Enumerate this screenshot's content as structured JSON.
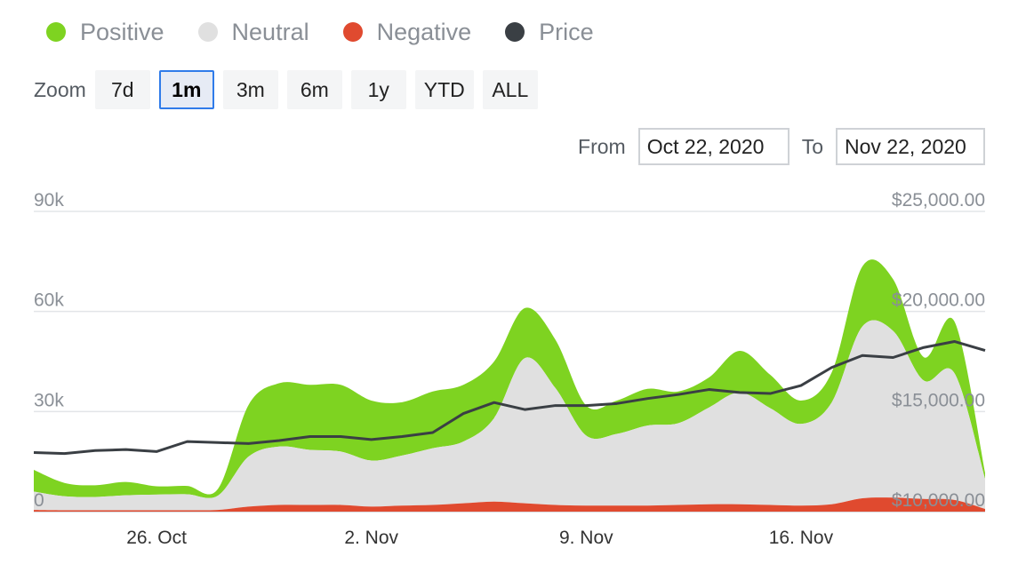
{
  "legend": [
    {
      "label": "Positive",
      "color": "#7ed321"
    },
    {
      "label": "Neutral",
      "color": "#e0e0e0"
    },
    {
      "label": "Negative",
      "color": "#e04a2f"
    },
    {
      "label": "Price",
      "color": "#3a3f44"
    }
  ],
  "zoom": {
    "label": "Zoom",
    "buttons": [
      "7d",
      "1m",
      "3m",
      "6m",
      "1y",
      "YTD",
      "ALL"
    ],
    "active": "1m"
  },
  "range": {
    "from_label": "From",
    "from_value": "Oct 22, 2020",
    "to_label": "To",
    "to_value": "Nov 22, 2020"
  },
  "chart_data": {
    "type": "area",
    "x": [
      "2020-10-22",
      "2020-10-23",
      "2020-10-24",
      "2020-10-25",
      "2020-10-26",
      "2020-10-27",
      "2020-10-28",
      "2020-10-29",
      "2020-10-30",
      "2020-10-31",
      "2020-11-01",
      "2020-11-02",
      "2020-11-03",
      "2020-11-04",
      "2020-11-05",
      "2020-11-06",
      "2020-11-07",
      "2020-11-08",
      "2020-11-09",
      "2020-11-10",
      "2020-11-11",
      "2020-11-12",
      "2020-11-13",
      "2020-11-14",
      "2020-11-15",
      "2020-11-16",
      "2020-11-17",
      "2020-11-18",
      "2020-11-19",
      "2020-11-20",
      "2020-11-21",
      "2020-11-22"
    ],
    "x_ticks": [
      {
        "date": "2020-10-26",
        "label": "26. Oct"
      },
      {
        "date": "2020-11-02",
        "label": "2. Nov"
      },
      {
        "date": "2020-11-09",
        "label": "9. Nov"
      },
      {
        "date": "2020-11-16",
        "label": "16. Nov"
      }
    ],
    "series": [
      {
        "name": "Negative",
        "axis": "left",
        "color": "#e04a2f",
        "values": [
          500,
          400,
          400,
          400,
          400,
          400,
          500,
          1500,
          2000,
          2000,
          2000,
          1500,
          1800,
          2000,
          2500,
          3000,
          2500,
          2000,
          1800,
          1800,
          1800,
          2000,
          2200,
          2200,
          2000,
          1800,
          2200,
          4000,
          4200,
          3800,
          3500,
          800
        ]
      },
      {
        "name": "Neutral",
        "axis": "left",
        "color": "#e0e0e0",
        "values": [
          5500,
          4200,
          4000,
          4500,
          4700,
          4800,
          4300,
          15000,
          17500,
          16500,
          16000,
          13800,
          15000,
          17000,
          18500,
          25000,
          43500,
          35000,
          21000,
          21500,
          24000,
          24500,
          29000,
          33500,
          29000,
          24500,
          30500,
          51500,
          50000,
          35500,
          38000,
          9000
        ]
      },
      {
        "name": "Positive",
        "axis": "left",
        "color": "#7ed321",
        "values": [
          6500,
          4000,
          3500,
          4000,
          2500,
          2500,
          2000,
          15500,
          19000,
          19500,
          20000,
          18000,
          16000,
          17000,
          17000,
          17000,
          15000,
          14500,
          9000,
          10000,
          11000,
          9500,
          9000,
          12500,
          10000,
          7000,
          9000,
          18000,
          15500,
          7000,
          15500,
          1800
        ]
      },
      {
        "name": "Price",
        "axis": "right",
        "color": "#3a3f44",
        "values": [
          12950,
          12900,
          13050,
          13100,
          13000,
          13500,
          13450,
          13400,
          13550,
          13750,
          13750,
          13600,
          13750,
          13950,
          14900,
          15450,
          15100,
          15300,
          15300,
          15400,
          15650,
          15850,
          16100,
          15950,
          15900,
          16300,
          17200,
          17800,
          17700,
          18200,
          18500,
          18050
        ]
      }
    ],
    "y_left": {
      "min": 0,
      "max": 90000,
      "ticks": [
        0,
        30000,
        60000,
        90000
      ],
      "tick_labels": [
        "0",
        "30k",
        "60k",
        "90k"
      ]
    },
    "y_right": {
      "min": 10000,
      "max": 25000,
      "ticks": [
        10000,
        15000,
        20000,
        25000
      ],
      "tick_labels": [
        "$10,000.00",
        "$15,000.00",
        "$20,000.00",
        "$25,000.00"
      ]
    },
    "grid": true,
    "legend_position": "top-left"
  }
}
